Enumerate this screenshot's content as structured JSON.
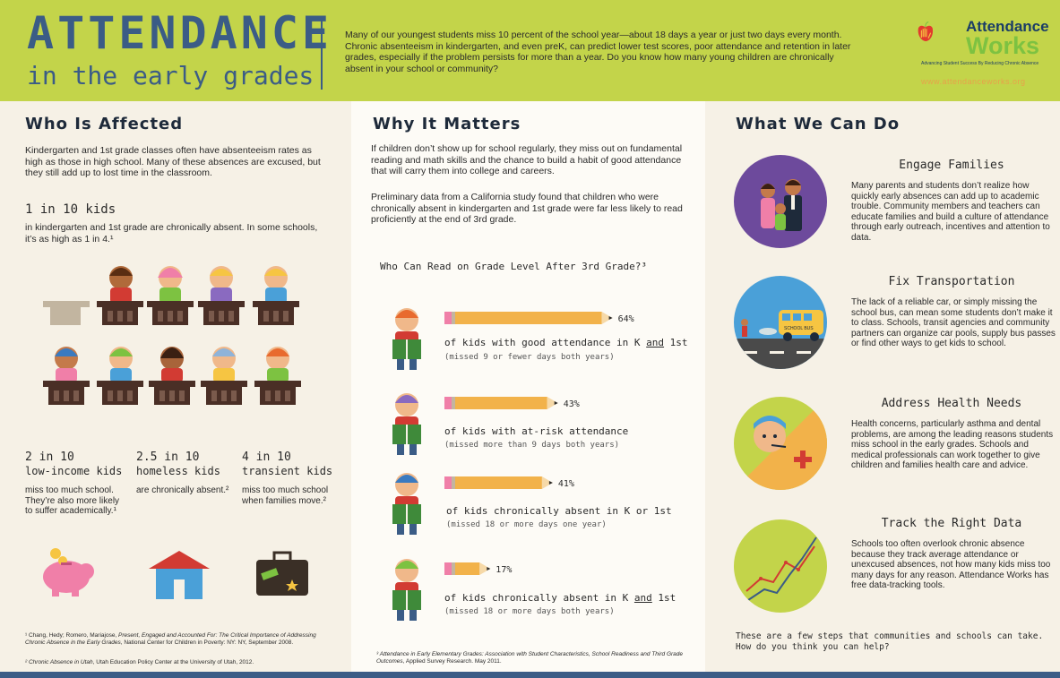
{
  "header": {
    "title": "ATTENDANCE",
    "subtitle": "in the early grades",
    "intro": "Many of our youngest students miss 10 percent of the school year—about 18 days a year or just two days every month.  Chronic absenteeism in kindergarten, and even preK, can predict lower test scores, poor attendance and retention in later grades, especially if the problem persists for more than a year. Do you know how many young children are chronically absent in your school or community?",
    "logo_line1": "Attendance",
    "logo_line2": "Works",
    "logo_tagline": "Advancing Student Success By Reducing Chronic Absence",
    "url": "www.attendanceworks.org",
    "colors": {
      "background": "#c3d44a",
      "title": "#3b5c86",
      "logo_green": "#7dc241",
      "logo_red": "#e23a2e"
    }
  },
  "who": {
    "title": "Who Is Affected",
    "intro": "Kindergarten and 1st grade classes often have absenteeism rates as high as those in high school. Many of these absences are excused, but they still add up to lost time in the classroom.",
    "stat_main": "1 in 10 kids",
    "stat_main_desc": "in kindergarten and 1st grade are chronically absent. In some schools, it’s as high as 1 in 4.¹",
    "stats": [
      {
        "value": "2 in 10",
        "group": "low-income kids",
        "desc": "miss too much school. They’re also more likely to suffer academically.¹",
        "icon": "piggy-bank-icon"
      },
      {
        "value": "2.5 in 10",
        "group": "homeless kids",
        "desc": "are chronically absent.²",
        "icon": "house-icon"
      },
      {
        "value": "4 in 10",
        "group": "transient kids",
        "desc": "miss too much school when families move.²",
        "icon": "suitcase-icon"
      }
    ],
    "footnote1_plain": "¹ Chang, Hedy; Romero, Mariajose, ",
    "footnote1_italic": "Present, Engaged and Accounted For: The Critical Importance of Addressing Chronic Absence in the Early Grades",
    "footnote1_rest": ", National Center for Children in Poverty: NY: NY, September 2008.",
    "footnote2_italic": "² Chronic Absence in Utah",
    "footnote2_rest": ", Utah Education Policy Center at the University of Utah, 2012."
  },
  "why": {
    "title": "Why It Matters",
    "para1": "If children don’t show up for school regularly, they miss out on fundamental reading and math skills and the chance to build a habit of good attendance that will carry them into college and careers.",
    "para2": "Preliminary data from a California study found that children who were chronically absent in kindergarten and 1st grade were far less likely to read proficiently at the end of 3rd grade.",
    "footnote_italic": "³ Attendance in Early Elementary Grades: Association with Student Characteristics, School Readiness and Third Grade Outcomes",
    "footnote_rest": ", Applied Survey Research. May 2011."
  },
  "chart_data": {
    "type": "bar",
    "title": "Who Can Read on Grade Level After 3rd Grade?³",
    "categories": [
      "of kids with good attendance in K and 1st",
      "of kids with at-risk attendance",
      "of kids chronically absent in K or 1st",
      "of kids chronically absent in K and 1st"
    ],
    "sublabels": [
      "(missed 9 or fewer days both years)",
      "(missed more than 9 days both years)",
      "(missed 18 or more days one year)",
      "(missed 18 or more days both years)"
    ],
    "values": [
      64,
      43,
      41,
      17
    ],
    "value_labels": [
      "64%",
      "43%",
      "41%",
      "17%"
    ],
    "ylim": [
      0,
      100
    ],
    "bar_color": "#f2b24a"
  },
  "what": {
    "title": "What We Can Do",
    "actions": [
      {
        "title": "Engage Families",
        "text": "Many parents and students don’t realize how quickly early absences can add up to academic trouble. Community members and teachers can educate families and build a culture of attendance through early outreach, incentives and attention to data.",
        "icon": "family-icon",
        "color": "#6d4a9c"
      },
      {
        "title": "Fix Transportation",
        "text": "The lack of a reliable car, or simply missing the school bus, can mean some students don’t make it to class. Schools, transit agencies and community partners can organize car pools, supply bus passes or find other ways to get kids to school.",
        "icon": "school-bus-icon",
        "color": "#4aa0d8",
        "bus_sign": "SCHOOL BUS"
      },
      {
        "title": "Address Health Needs",
        "text": "Health concerns, particularly asthma and dental problems, are among the leading reasons students miss school in the early grades. Schools and medical professionals can work together to give children and families health care and advice.",
        "icon": "sick-child-icon",
        "color": "#f2b24a"
      },
      {
        "title": "Track the Right Data",
        "text": "Schools too often overlook chronic absence because they track average attendance or unexcused absences, not how many kids miss too many days for any reason. Attendance Works has free data-tracking tools.",
        "icon": "line-graph-icon",
        "color": "#c3d44a"
      }
    ],
    "closing": "These are a few steps that communities and schools can take. How do you think you can help?"
  }
}
